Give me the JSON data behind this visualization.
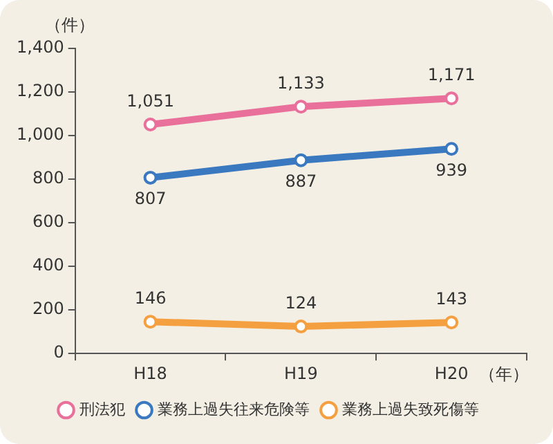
{
  "chart_data": {
    "type": "line",
    "xlabel": "（年）",
    "ylabel": "（件）",
    "categories": [
      "H18",
      "H19",
      "H20"
    ],
    "series": [
      {
        "name": "刑法犯",
        "color": "#e8709a",
        "values": [
          1051,
          1133,
          1171
        ],
        "value_labels": [
          "1,051",
          "1,133",
          "1,171"
        ]
      },
      {
        "name": "業務上過失往来危険等",
        "color": "#3a78c0",
        "values": [
          807,
          887,
          939
        ],
        "value_labels": [
          "807",
          "887",
          "939"
        ]
      },
      {
        "name": "業務上過失致死傷等",
        "color": "#f5a040",
        "values": [
          146,
          124,
          143
        ],
        "value_labels": [
          "146",
          "124",
          "143"
        ]
      }
    ],
    "ylim": [
      0,
      1400
    ],
    "yticks": [
      0,
      200,
      400,
      600,
      800,
      {
        "value": 1000,
        "label": "1,000"
      },
      {
        "value": 1200,
        "label": "1,200"
      },
      {
        "value": 1400,
        "label": "1,400"
      }
    ],
    "grid": false,
    "legend": "bottom",
    "marker": "circle",
    "line_style": "solid"
  }
}
